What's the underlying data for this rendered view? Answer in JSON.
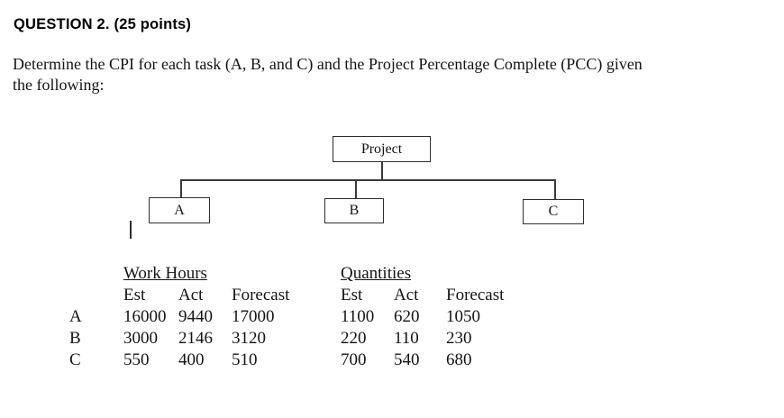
{
  "question": {
    "title": "QUESTION 2. (25 points)"
  },
  "prompt": {
    "line1": "Determine the CPI for each task (A, B, and C) and the Project Percentage Complete (PCC) given",
    "line2": "the following:"
  },
  "diagram": {
    "root_label": "Project",
    "task_a_label": "A",
    "task_b_label": "B",
    "task_c_label": "C"
  },
  "table": {
    "group_headers": {
      "work_hours": "Work Hours",
      "quantities": "Quantities"
    },
    "column_headers": {
      "est": "Est",
      "act": "Act",
      "forecast": "Forecast"
    },
    "rows": [
      {
        "task": "A",
        "wh_est": "16000",
        "wh_act": "9440",
        "wh_forecast": "17000",
        "q_est": "1100",
        "q_act": "620",
        "q_forecast": "1050"
      },
      {
        "task": "B",
        "wh_est": "3000",
        "wh_act": "2146",
        "wh_forecast": "3120",
        "q_est": "220",
        "q_act": "110",
        "q_forecast": "230"
      },
      {
        "task": "C",
        "wh_est": "550",
        "wh_act": "400",
        "wh_forecast": "510",
        "q_est": "700",
        "q_act": "540",
        "q_forecast": "680"
      }
    ]
  },
  "colors": {
    "text": "#141414",
    "line": "#3a3a3a",
    "background": "#ffffff"
  }
}
